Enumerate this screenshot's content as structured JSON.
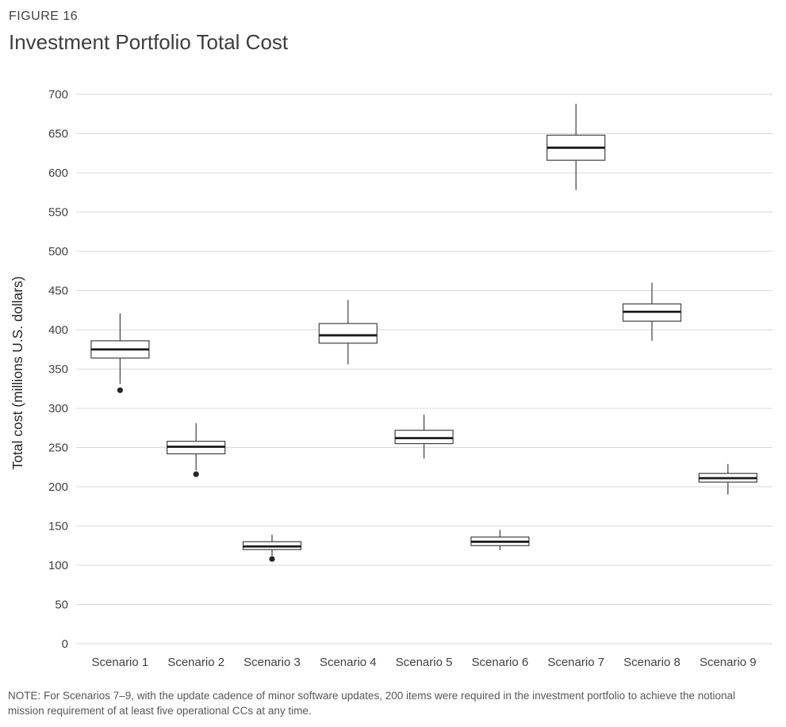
{
  "figure": {
    "label": "FIGURE 16",
    "title": "Investment Portfolio Total Cost"
  },
  "note": "NOTE: For Scenarios 7–9, with the update cadence of minor software updates, 200 items were required in the investment portfolio to achieve the notional mission requirement of at least five operational CCs at any time.",
  "chart_data": {
    "type": "boxplot",
    "title": "Investment Portfolio Total Cost",
    "xlabel": "",
    "ylabel": "Total cost (millions U.S. dollars)",
    "ylim": [
      0,
      700
    ],
    "ytick_step": 50,
    "yticks": [
      0,
      50,
      100,
      150,
      200,
      250,
      300,
      350,
      400,
      450,
      500,
      550,
      600,
      650,
      700
    ],
    "grid": true,
    "legend": "none",
    "categories": [
      "Scenario 1",
      "Scenario 2",
      "Scenario 3",
      "Scenario 4",
      "Scenario 5",
      "Scenario 6",
      "Scenario 7",
      "Scenario 8",
      "Scenario 9"
    ],
    "boxes": [
      {
        "category": "Scenario 1",
        "low": 331,
        "q1": 364,
        "median": 375,
        "q3": 386,
        "high": 421,
        "outliers": [
          323
        ]
      },
      {
        "category": "Scenario 2",
        "low": 221,
        "q1": 242,
        "median": 251,
        "q3": 258,
        "high": 281,
        "outliers": [
          216
        ]
      },
      {
        "category": "Scenario 3",
        "low": 112,
        "q1": 120,
        "median": 124,
        "q3": 130,
        "high": 139,
        "outliers": [
          108
        ]
      },
      {
        "category": "Scenario 4",
        "low": 356,
        "q1": 383,
        "median": 393,
        "q3": 408,
        "high": 438,
        "outliers": []
      },
      {
        "category": "Scenario 5",
        "low": 236,
        "q1": 255,
        "median": 262,
        "q3": 272,
        "high": 292,
        "outliers": []
      },
      {
        "category": "Scenario 6",
        "low": 119,
        "q1": 125,
        "median": 130,
        "q3": 136,
        "high": 145,
        "outliers": []
      },
      {
        "category": "Scenario 7",
        "low": 578,
        "q1": 616,
        "median": 632,
        "q3": 648,
        "high": 688,
        "outliers": []
      },
      {
        "category": "Scenario 8",
        "low": 386,
        "q1": 411,
        "median": 423,
        "q3": 433,
        "high": 460,
        "outliers": []
      },
      {
        "category": "Scenario 9",
        "low": 190,
        "q1": 206,
        "median": 211,
        "q3": 217,
        "high": 229,
        "outliers": []
      }
    ]
  },
  "colors": {
    "background": "#ffffff",
    "grid": "#d9d9d9",
    "box_stroke": "#404040",
    "box_fill": "#ffffff",
    "median": "#1a1a1a",
    "outlier": "#262626",
    "tick_text": "#404040",
    "axis_label_text": "#262626",
    "title_text": "#3d3d3d",
    "note_text": "#565656"
  }
}
